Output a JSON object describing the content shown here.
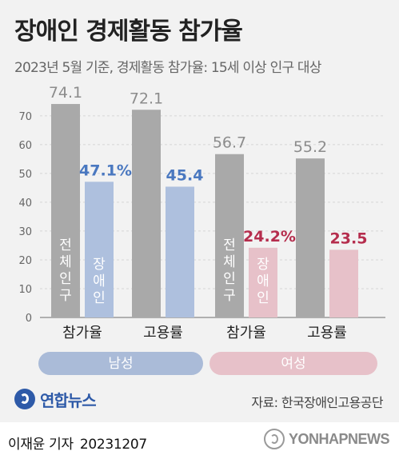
{
  "title": "장애인 경제활동 참가율",
  "subtitle": "2023년 5월 기준, 경제활동 참가율: 15세 이상 인구 대상",
  "chart_data": {
    "type": "bar",
    "yticks": [
      0,
      10,
      20,
      30,
      40,
      50,
      60,
      70
    ],
    "ylim": [
      0,
      78
    ],
    "categories": [
      "참가율",
      "고용률",
      "참가율",
      "고용률"
    ],
    "groups": [
      {
        "label": "남성",
        "color": "#aabbd8",
        "text_color": "#ffffff"
      },
      {
        "label": "여성",
        "color": "#e7c1c9",
        "text_color": "#ffffff"
      }
    ],
    "series": [
      {
        "name": "전체 인구",
        "color": "#a9a9a9",
        "label_color": "#8c8c8c",
        "values": [
          74.1,
          72.1,
          56.7,
          55.2
        ],
        "value_labels": [
          "74.1",
          "72.1",
          "56.7",
          "55.2"
        ]
      },
      {
        "name": "장애인",
        "color_by_group": [
          "#aec0de",
          "#e7c1c9"
        ],
        "label_colors": [
          "#4a78c0",
          "#b52d4d"
        ],
        "values": [
          47.1,
          45.4,
          24.2,
          23.5
        ],
        "value_labels": [
          "47.1%",
          "45.4",
          "24.2%",
          "23.5"
        ]
      }
    ],
    "bar_text": [
      "전체인구",
      "장애인"
    ]
  },
  "logo": {
    "text": "연합뉴스"
  },
  "source": "자료: 한국장애인고용공단",
  "byline": {
    "reporter": "이재윤 기자",
    "date": "20231207"
  },
  "watermark": {
    "text": "YONHAPNEWS"
  }
}
